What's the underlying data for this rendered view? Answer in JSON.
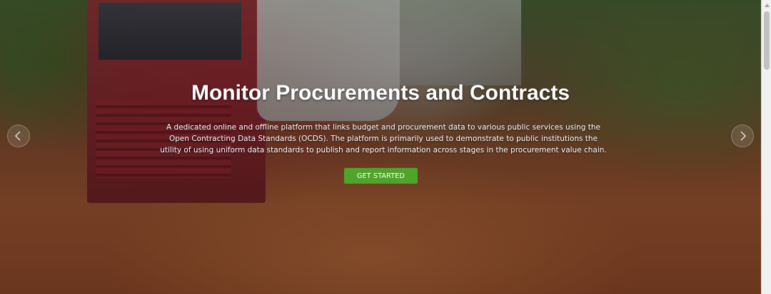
{
  "hero": {
    "title": "Monitor Procurements and Contracts",
    "description": "A dedicated online and offline platform that links budget and procurement data to various public services using the Open Contracting Data Standards (OCDS). The platform is primarily used to demonstrate to public institutions the utility of using uniform data standards to publish and report information across stages in the procurement value chain.",
    "cta_label": "GET STARTED",
    "cta_color": "#4fa52a",
    "background_image": "muddy-road-trucks-photo"
  },
  "carousel": {
    "prev_icon": "chevron-left-icon",
    "next_icon": "chevron-right-icon"
  },
  "scrollbar": {
    "up_icon": "triangle-up-icon"
  }
}
